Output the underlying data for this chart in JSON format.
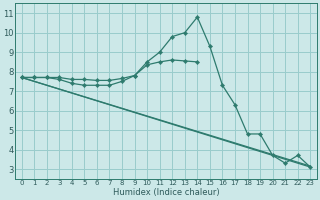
{
  "xlabel": "Humidex (Indice chaleur)",
  "bg_color": "#cce8e8",
  "grid_color": "#99cccc",
  "line_color": "#2e7b6e",
  "xlim": [
    -0.5,
    23.5
  ],
  "ylim": [
    2.5,
    11.5
  ],
  "yticks": [
    3,
    4,
    5,
    6,
    7,
    8,
    9,
    10,
    11
  ],
  "xticks": [
    0,
    1,
    2,
    3,
    4,
    5,
    6,
    7,
    8,
    9,
    10,
    11,
    12,
    13,
    14,
    15,
    16,
    17,
    18,
    19,
    20,
    21,
    22,
    23
  ],
  "line1_x": [
    0,
    1,
    2,
    3,
    4,
    5,
    6,
    7,
    8,
    9,
    10,
    11,
    12,
    13,
    14,
    15,
    16,
    17,
    18,
    19,
    20,
    21,
    22,
    23
  ],
  "line1_y": [
    7.7,
    7.7,
    7.7,
    7.6,
    7.4,
    7.3,
    7.3,
    7.3,
    7.5,
    7.8,
    8.5,
    9.0,
    9.8,
    10.0,
    10.8,
    9.3,
    7.3,
    6.3,
    4.8,
    4.8,
    3.7,
    3.3,
    3.7,
    3.1
  ],
  "line2_x": [
    0,
    1,
    2,
    3,
    4,
    5,
    6,
    7,
    8,
    9,
    10,
    11,
    12,
    13,
    14
  ],
  "line2_y": [
    7.7,
    7.7,
    7.7,
    7.7,
    7.6,
    7.6,
    7.55,
    7.55,
    7.65,
    7.8,
    8.35,
    8.5,
    8.6,
    8.55,
    8.5
  ],
  "line3_x": [
    0,
    23
  ],
  "line3_y": [
    7.7,
    3.1
  ],
  "line4_x": [
    0,
    23
  ],
  "line4_y": [
    7.7,
    3.15
  ]
}
